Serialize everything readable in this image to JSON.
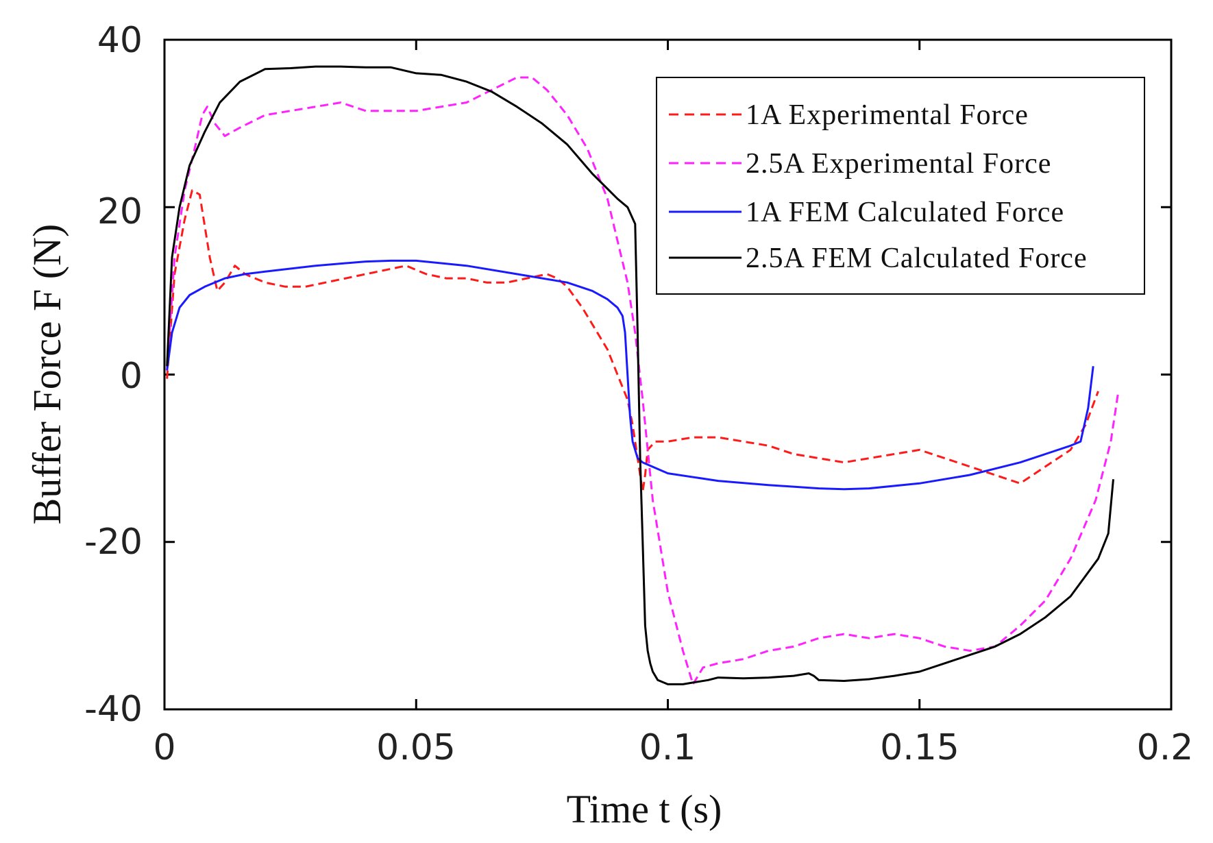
{
  "chart_data": {
    "type": "line",
    "xlabel": "Time t (s)",
    "ylabel": "Buffer Force F (N)",
    "xlim": [
      0,
      0.2
    ],
    "ylim": [
      -40,
      40
    ],
    "x_ticks": [
      "0",
      "0.05",
      "0.1",
      "0.15",
      "0.2"
    ],
    "y_ticks": [
      "40",
      "20",
      "0",
      "-20",
      "-40"
    ],
    "grid": false,
    "legend_position": "top-right",
    "series": [
      {
        "name": "1A Experimental Force",
        "color": "#ff1a1a",
        "style": "dashed",
        "x": [
          0.0005,
          0.002,
          0.004,
          0.0055,
          0.007,
          0.009,
          0.0105,
          0.012,
          0.014,
          0.016,
          0.018,
          0.02,
          0.024,
          0.028,
          0.032,
          0.036,
          0.04,
          0.044,
          0.048,
          0.052,
          0.056,
          0.06,
          0.064,
          0.068,
          0.072,
          0.076,
          0.078,
          0.08,
          0.083,
          0.086,
          0.088,
          0.09,
          0.092,
          0.093,
          0.094,
          0.095,
          0.0955,
          0.096,
          0.0975,
          0.1,
          0.105,
          0.11,
          0.115,
          0.12,
          0.125,
          0.13,
          0.135,
          0.14,
          0.145,
          0.15,
          0.155,
          0.16,
          0.165,
          0.17,
          0.175,
          0.18,
          0.183,
          0.1855
        ],
        "y": [
          -0.5,
          12,
          18.5,
          22,
          21.5,
          14,
          10,
          11,
          13,
          12,
          11.5,
          11,
          10.5,
          10.5,
          11,
          11.5,
          12,
          12.5,
          13,
          12,
          11.5,
          11.5,
          11,
          11,
          11.5,
          12,
          11.5,
          10.5,
          8,
          5,
          3,
          0,
          -3,
          -6,
          -10,
          -14,
          -12,
          -9,
          -8,
          -8,
          -7.5,
          -7.5,
          -8,
          -8.5,
          -9.5,
          -10,
          -10.5,
          -10,
          -9.5,
          -9,
          -10,
          -11,
          -12,
          -13,
          -11,
          -9,
          -6,
          -2
        ]
      },
      {
        "name": "2.5A Experimental Force",
        "color": "#ff22ff",
        "style": "dashed",
        "x": [
          0.0005,
          0.002,
          0.004,
          0.006,
          0.0075,
          0.0085,
          0.01,
          0.012,
          0.015,
          0.02,
          0.025,
          0.03,
          0.035,
          0.04,
          0.045,
          0.05,
          0.055,
          0.06,
          0.065,
          0.07,
          0.073,
          0.076,
          0.08,
          0.084,
          0.088,
          0.09,
          0.092,
          0.0935,
          0.095,
          0.097,
          0.1,
          0.103,
          0.105,
          0.107,
          0.11,
          0.115,
          0.12,
          0.125,
          0.13,
          0.135,
          0.14,
          0.145,
          0.15,
          0.155,
          0.16,
          0.165,
          0.17,
          0.175,
          0.18,
          0.185,
          0.188,
          0.1895
        ],
        "y": [
          0.5,
          14,
          22,
          27,
          31,
          32,
          30,
          28.5,
          29.5,
          31,
          31.5,
          32,
          32.5,
          31.5,
          31.5,
          31.5,
          32,
          32.5,
          34,
          35.5,
          35.5,
          34,
          31,
          27,
          21,
          16,
          11,
          5,
          -3,
          -15,
          -26,
          -33,
          -37,
          -35,
          -34.5,
          -34,
          -33,
          -32.5,
          -31.5,
          -31,
          -31.5,
          -31,
          -31.5,
          -32.5,
          -33,
          -32.5,
          -30,
          -27,
          -22,
          -15,
          -8,
          -2
        ]
      },
      {
        "name": "1A FEM Calculated Force",
        "color": "#1a1aff",
        "style": "solid",
        "x": [
          0.0005,
          0.0015,
          0.003,
          0.005,
          0.008,
          0.012,
          0.016,
          0.02,
          0.03,
          0.04,
          0.045,
          0.05,
          0.06,
          0.07,
          0.08,
          0.085,
          0.088,
          0.09,
          0.091,
          0.0915,
          0.092,
          0.0925,
          0.093,
          0.094,
          0.095,
          0.1,
          0.11,
          0.12,
          0.13,
          0.135,
          0.14,
          0.15,
          0.16,
          0.17,
          0.175,
          0.18,
          0.182,
          0.1835,
          0.1845
        ],
        "y": [
          0.5,
          5,
          8,
          9.5,
          10.5,
          11.5,
          12,
          12.3,
          13,
          13.5,
          13.6,
          13.6,
          13,
          12,
          11,
          10,
          9,
          8,
          7,
          5,
          0,
          -5,
          -8,
          -10,
          -10.5,
          -11.8,
          -12.7,
          -13.2,
          -13.6,
          -13.7,
          -13.6,
          -13,
          -12,
          -10.5,
          -9.5,
          -8.5,
          -8,
          -4,
          1
        ]
      },
      {
        "name": "2.5A FEM Calculated Force",
        "color": "#000000",
        "style": "solid",
        "x": [
          0.0005,
          0.0015,
          0.003,
          0.005,
          0.008,
          0.011,
          0.015,
          0.02,
          0.025,
          0.03,
          0.035,
          0.04,
          0.045,
          0.05,
          0.055,
          0.06,
          0.065,
          0.07,
          0.075,
          0.08,
          0.085,
          0.09,
          0.092,
          0.0935,
          0.094,
          0.0945,
          0.095,
          0.0955,
          0.096,
          0.0965,
          0.097,
          0.098,
          0.1,
          0.103,
          0.105,
          0.108,
          0.11,
          0.115,
          0.12,
          0.125,
          0.128,
          0.129,
          0.13,
          0.135,
          0.14,
          0.145,
          0.15,
          0.155,
          0.16,
          0.165,
          0.17,
          0.175,
          0.18,
          0.1855,
          0.1875,
          0.1885
        ],
        "y": [
          1,
          14,
          20,
          25,
          29,
          32.5,
          35,
          36.5,
          36.6,
          36.8,
          36.8,
          36.7,
          36.7,
          36,
          35.8,
          35,
          33.8,
          32,
          30,
          27.5,
          24,
          21,
          20,
          18,
          5,
          -10,
          -20,
          -30,
          -33,
          -34.5,
          -35.5,
          -36.5,
          -37,
          -37,
          -36.8,
          -36.5,
          -36.2,
          -36.3,
          -36.2,
          -36,
          -35.7,
          -36,
          -36.5,
          -36.6,
          -36.4,
          -36,
          -35.5,
          -34.5,
          -33.5,
          -32.5,
          -31,
          -29,
          -26.5,
          -22,
          -19,
          -12.5
        ]
      }
    ]
  }
}
